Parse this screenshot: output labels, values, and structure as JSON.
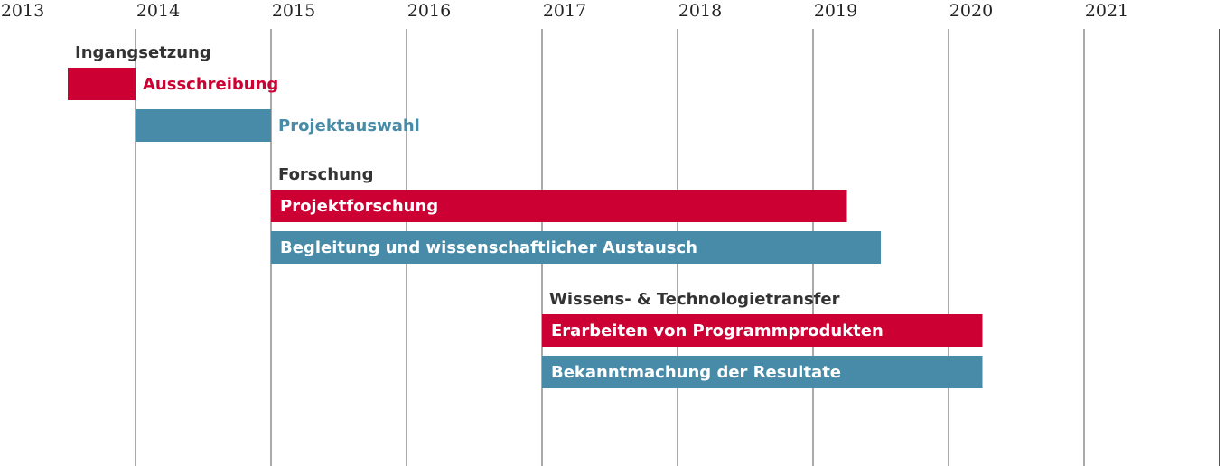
{
  "chart_data": {
    "type": "gantt",
    "x_axis": {
      "tick_labels": [
        "2013",
        "2014",
        "2015",
        "2016",
        "2017",
        "2018",
        "2019",
        "2020",
        "2021"
      ],
      "range": [
        2013.0,
        2022.0
      ],
      "grid": true
    },
    "colors": {
      "red": "#cc0033",
      "blue": "#478ba8",
      "gridline": "#555555"
    },
    "groups": [
      {
        "name": "Ingangsetzung",
        "tasks": [
          {
            "label": "Ausschreibung",
            "start": 2013.5,
            "end": 2014.0,
            "color": "red",
            "label_position": "outside"
          },
          {
            "label": "Projektauswahl",
            "start": 2014.0,
            "end": 2015.0,
            "color": "blue",
            "label_position": "outside"
          }
        ]
      },
      {
        "name": "Forschung",
        "tasks": [
          {
            "label": "Projektforschung",
            "start": 2015.0,
            "end": 2019.25,
            "color": "red",
            "label_position": "inside"
          },
          {
            "label": "Begleitung und wissenschaftlicher Austausch",
            "start": 2015.0,
            "end": 2019.5,
            "color": "blue",
            "label_position": "inside"
          }
        ]
      },
      {
        "name": "Wissens- & Technologietransfer",
        "tasks": [
          {
            "label": "Erarbeiten von Programmprodukten",
            "start": 2017.0,
            "end": 2020.25,
            "color": "red",
            "label_position": "inside"
          },
          {
            "label": "Bekanntmachung der Resultate",
            "start": 2017.0,
            "end": 2020.25,
            "color": "blue",
            "label_position": "inside"
          }
        ]
      }
    ]
  }
}
